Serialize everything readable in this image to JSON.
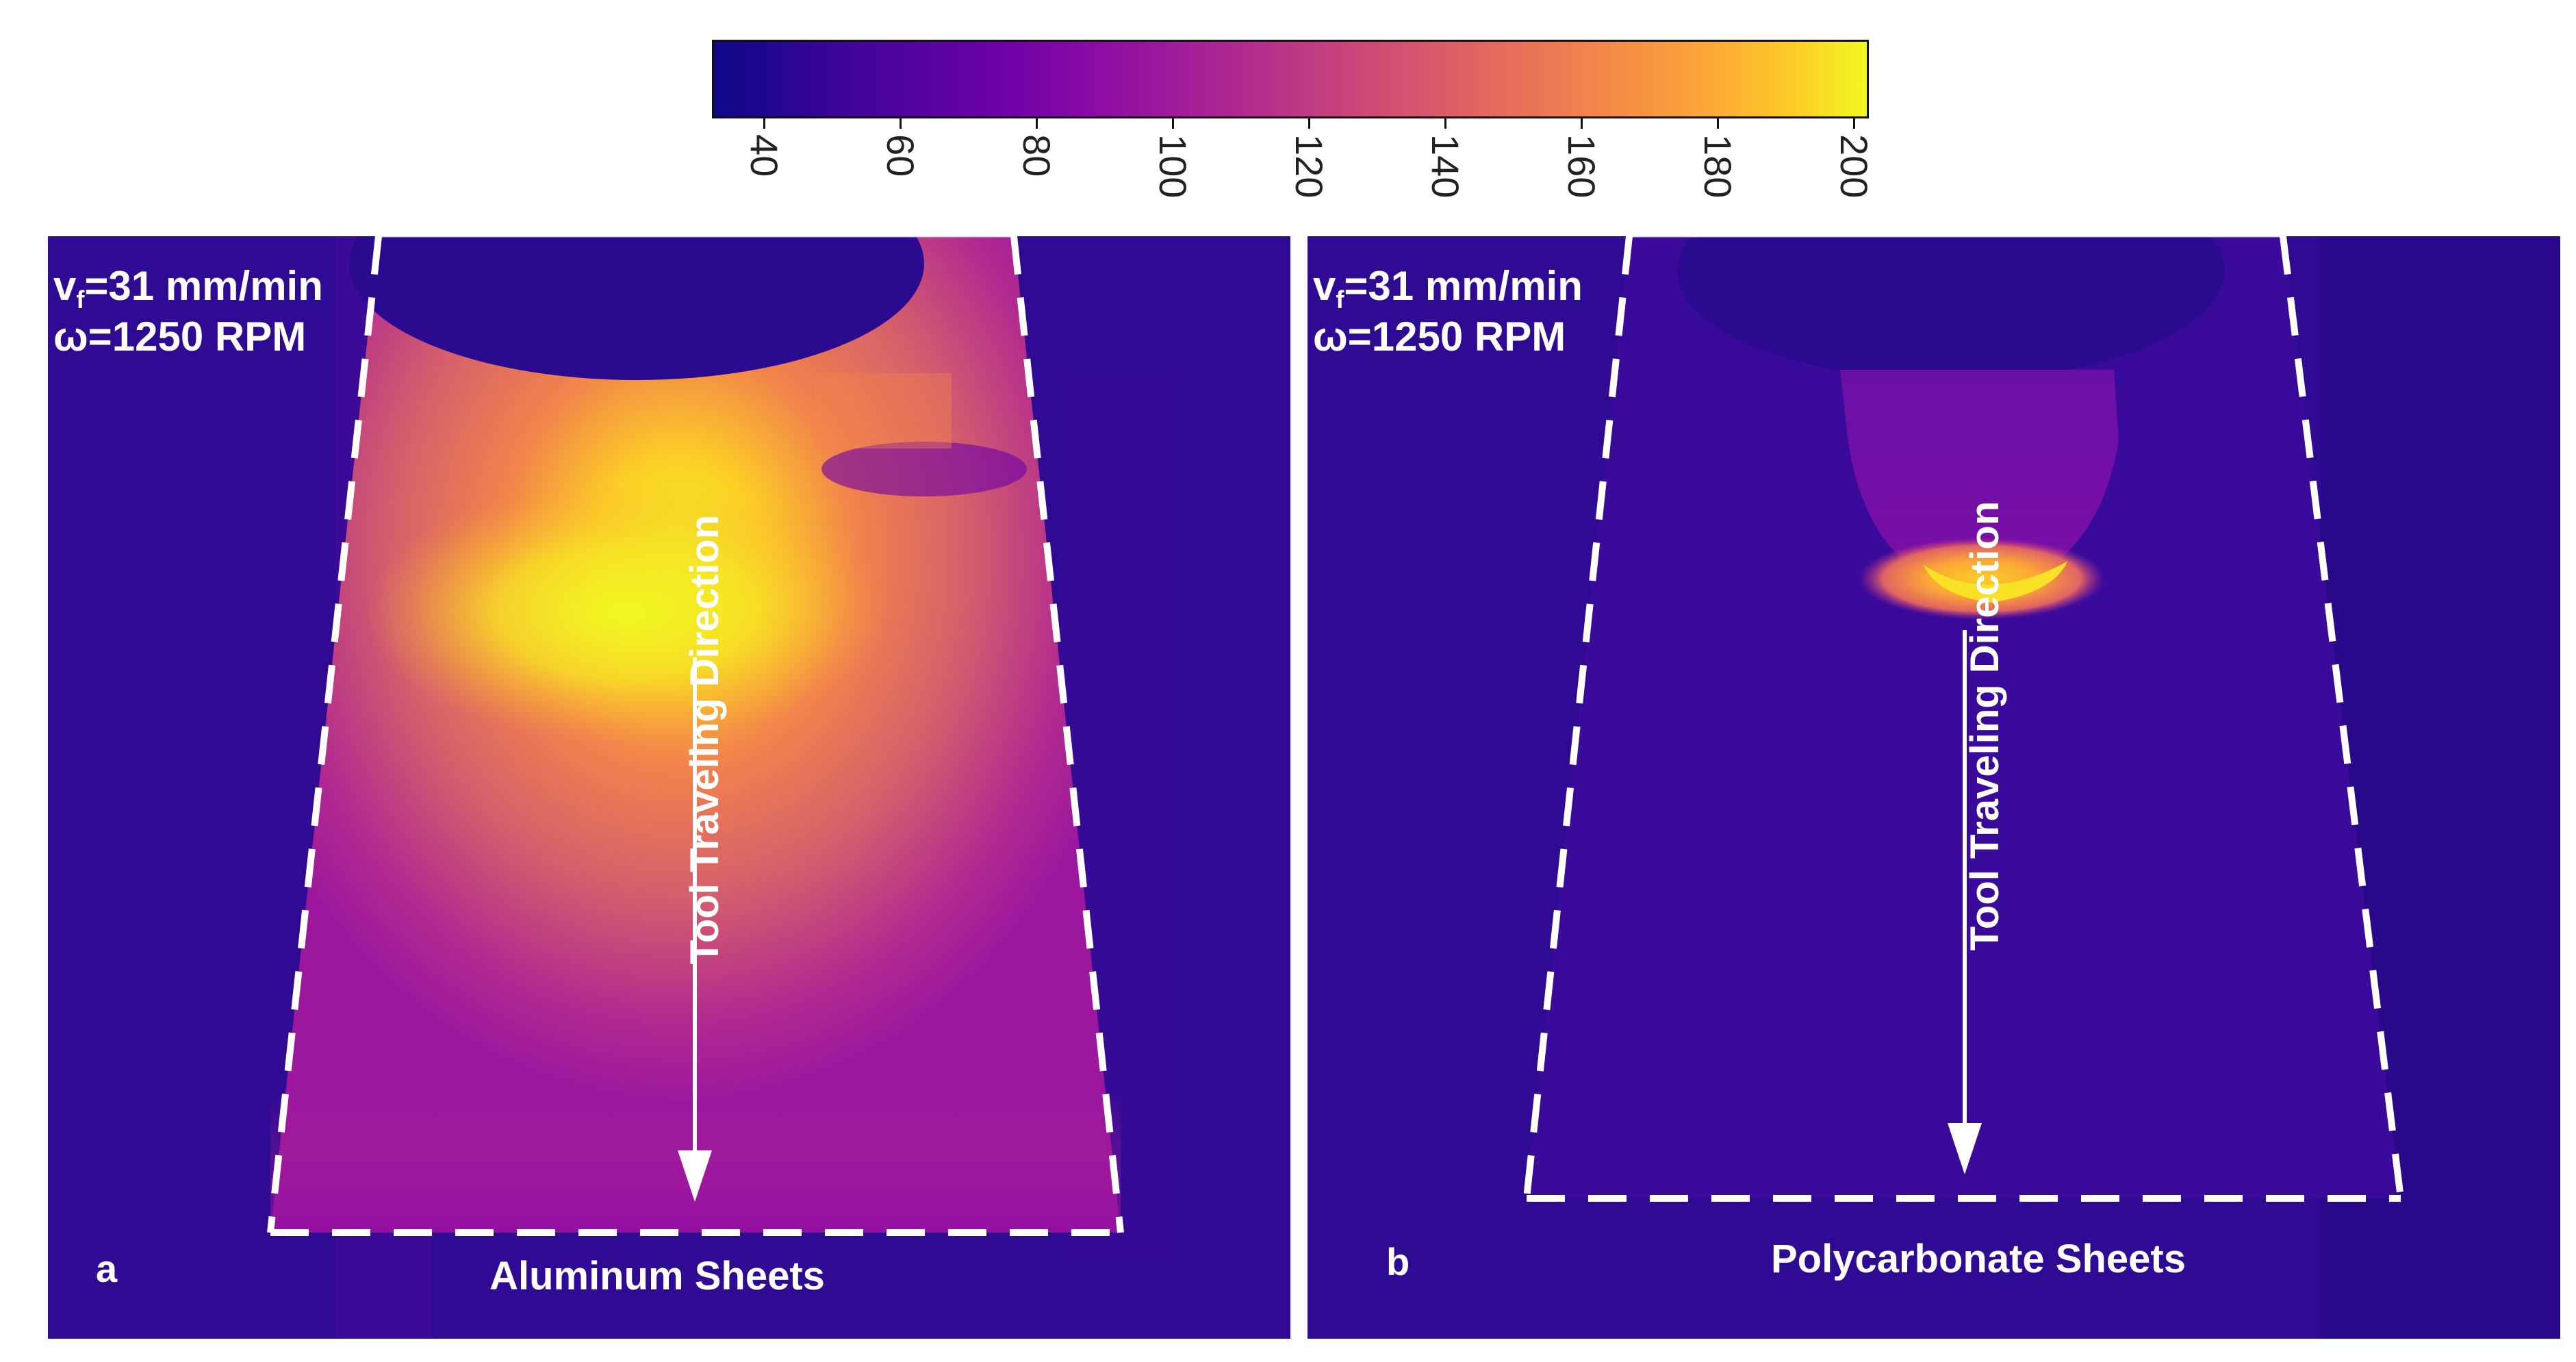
{
  "colorbar": {
    "ticks": [
      "40",
      "60",
      "80",
      "100",
      "120",
      "140",
      "160",
      "180",
      "200"
    ],
    "range": [
      30,
      200
    ],
    "colormap": "plasma"
  },
  "panels": [
    {
      "id": "a",
      "letter": "a",
      "feed_rate_prefix": "v",
      "feed_rate_subscript": "f",
      "feed_rate_value": "=31 mm/min",
      "spindle_speed": "ω=1250 RPM",
      "direction_label": "Tool Traveling Direction",
      "material_label": "Aluminum Sheets"
    },
    {
      "id": "b",
      "letter": "b",
      "feed_rate_prefix": "v",
      "feed_rate_subscript": "f",
      "feed_rate_value": "=31 mm/min",
      "spindle_speed": "ω=1250 RPM",
      "direction_label": "Tool Traveling Direction",
      "material_label": "Polycarbonate Sheets"
    }
  ],
  "colors": {
    "background_dark": "#2a0b8f",
    "cold_purple": "#3a0a9a",
    "hot_yellow": "#f0f921",
    "arrow": "#ffffff",
    "dashed_outline": "#ffffff"
  }
}
